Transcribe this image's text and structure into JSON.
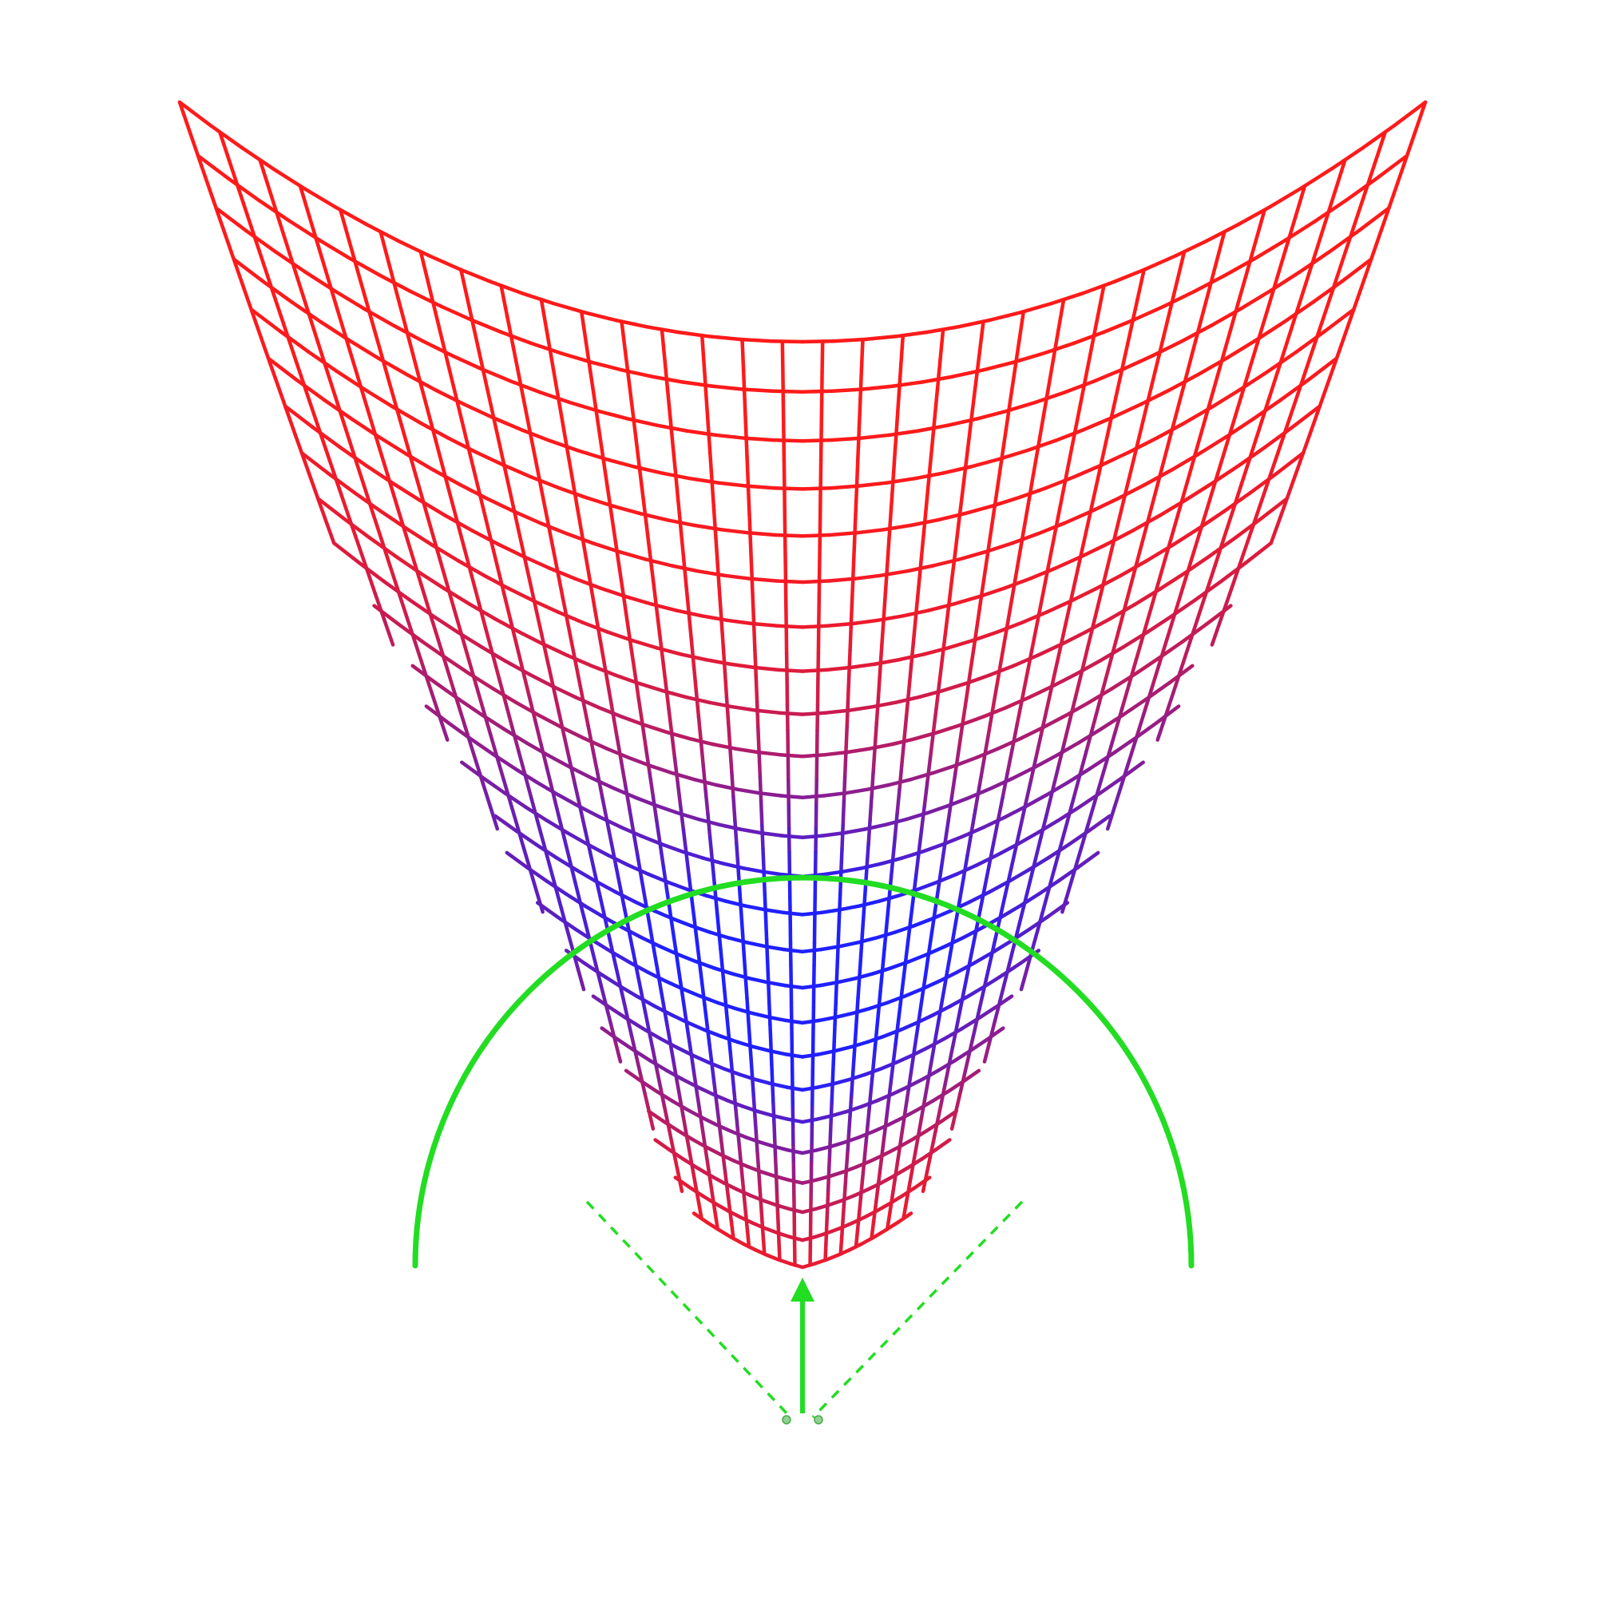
{
  "diagram": {
    "description_free": true,
    "colors": {
      "mesh_outer": "#ff1a1a",
      "mesh_inner": "#2020ff",
      "indicator": "#22dd22",
      "background": "#ffffff"
    },
    "mesh": {
      "columns": 31,
      "rows": 24
    },
    "elements": {
      "gradient_mesh": "curved-grid-mesh",
      "field_arc": "semicircle-arc",
      "cone_lines": "dashed-cone-lines",
      "direction_arrow": "up-arrow-icon",
      "endpoint_dots": "pivot-dots"
    }
  }
}
